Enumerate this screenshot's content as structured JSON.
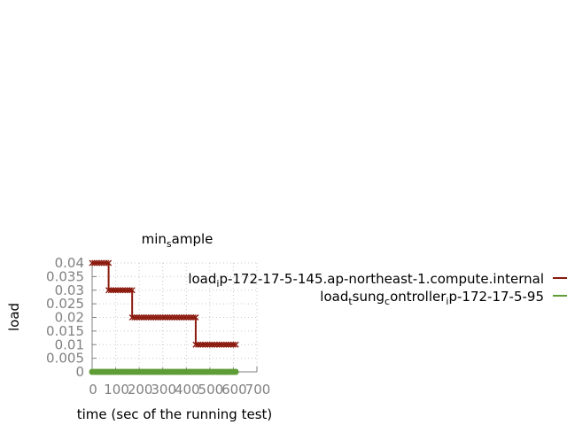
{
  "chart_data": {
    "type": "line",
    "title": "min_sample",
    "xlabel": "time (sec of the running test)",
    "ylabel": "load",
    "xlim": [
      0,
      700
    ],
    "ylim": [
      0,
      0.04
    ],
    "xticks": [
      0,
      100,
      200,
      300,
      400,
      500,
      600,
      700
    ],
    "yticks": [
      0,
      0.005,
      0.01,
      0.015,
      0.02,
      0.025,
      0.03,
      0.035,
      0.04
    ],
    "xtick_labels": [
      "0",
      "100",
      "200",
      "300",
      "400",
      "500",
      "600",
      "700"
    ],
    "ytick_labels": [
      "0",
      "0.005",
      "0.01",
      "0.015",
      "0.02",
      "0.025",
      "0.03",
      "0.035",
      "0.04"
    ],
    "grid": true,
    "legend_position": "right",
    "series": [
      {
        "name": "load_ip-172-17-5-145.ap-northeast-1.compute.internal",
        "color": "#8b1a0e",
        "marker": "cross",
        "x": [
          0,
          10,
          20,
          30,
          40,
          50,
          60,
          70,
          70,
          80,
          90,
          100,
          110,
          120,
          130,
          140,
          150,
          160,
          170,
          170,
          180,
          190,
          200,
          210,
          220,
          230,
          240,
          250,
          260,
          270,
          280,
          290,
          300,
          310,
          320,
          330,
          340,
          350,
          360,
          370,
          380,
          390,
          400,
          410,
          420,
          430,
          440,
          440,
          450,
          460,
          470,
          480,
          490,
          500,
          510,
          520,
          530,
          540,
          550,
          560,
          570,
          580,
          590,
          600,
          610
        ],
        "y": [
          0.04,
          0.04,
          0.04,
          0.04,
          0.04,
          0.04,
          0.04,
          0.04,
          0.03,
          0.03,
          0.03,
          0.03,
          0.03,
          0.03,
          0.03,
          0.03,
          0.03,
          0.03,
          0.03,
          0.02,
          0.02,
          0.02,
          0.02,
          0.02,
          0.02,
          0.02,
          0.02,
          0.02,
          0.02,
          0.02,
          0.02,
          0.02,
          0.02,
          0.02,
          0.02,
          0.02,
          0.02,
          0.02,
          0.02,
          0.02,
          0.02,
          0.02,
          0.02,
          0.02,
          0.02,
          0.02,
          0.02,
          0.01,
          0.01,
          0.01,
          0.01,
          0.01,
          0.01,
          0.01,
          0.01,
          0.01,
          0.01,
          0.01,
          0.01,
          0.01,
          0.01,
          0.01,
          0.01,
          0.01,
          0.01
        ]
      },
      {
        "name": "load_tsung_controller_ip-172-17-5-95",
        "color": "#5e9c36",
        "marker": "circle",
        "x": [
          0,
          10,
          20,
          30,
          40,
          50,
          60,
          70,
          80,
          90,
          100,
          110,
          120,
          130,
          140,
          150,
          160,
          170,
          180,
          190,
          200,
          210,
          220,
          230,
          240,
          250,
          260,
          270,
          280,
          290,
          300,
          310,
          320,
          330,
          340,
          350,
          360,
          370,
          380,
          390,
          400,
          410,
          420,
          430,
          440,
          450,
          460,
          470,
          480,
          490,
          500,
          510,
          520,
          530,
          540,
          550,
          560,
          570,
          580,
          590,
          600,
          610
        ],
        "y": [
          0,
          0,
          0,
          0,
          0,
          0,
          0,
          0,
          0,
          0,
          0,
          0,
          0,
          0,
          0,
          0,
          0,
          0,
          0,
          0,
          0,
          0,
          0,
          0,
          0,
          0,
          0,
          0,
          0,
          0,
          0,
          0,
          0,
          0,
          0,
          0,
          0,
          0,
          0,
          0,
          0,
          0,
          0,
          0,
          0,
          0,
          0,
          0,
          0,
          0,
          0,
          0,
          0,
          0,
          0,
          0,
          0,
          0,
          0,
          0,
          0,
          0
        ]
      }
    ]
  }
}
